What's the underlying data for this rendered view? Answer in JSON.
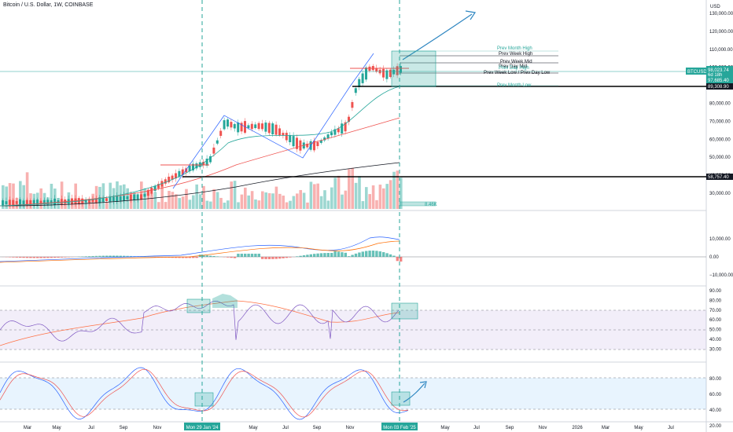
{
  "title": "Bitcoin / U.S. Dollar, 1W, COINBASE",
  "currency": "USD",
  "price_axis": [
    "130,000.00",
    "120,000.00",
    "110,000.00",
    "100,000.00",
    "90,000.00",
    "80,000.00",
    "70,000.00",
    "60,000.00",
    "50,000.00",
    "40,000.00",
    "30,000.00"
  ],
  "price_badges": {
    "ticker": "BTCUSD",
    "last": "98,023.74",
    "countdown": "6d 18h",
    "level2": "97,685.40",
    "level3": "89,308.90",
    "level4": "58,757.40",
    "volume": "8.46K"
  },
  "level_labels": {
    "prev_month_high": "Prev Month High",
    "prev_week_high": "Prev Week High",
    "prev_week_mid": "Prev Week Mid",
    "prev_day_mid": "Prev Day Mid",
    "prev_day_high": "Prev Day High",
    "prev_week_low": "Prev Week Low / Prev Day Low",
    "prev_month_low": "Prev Month Low"
  },
  "macd_axis": [
    "10,000.00",
    "0.00",
    "−10,000.00"
  ],
  "rsi_axis": [
    "90.00",
    "80.00",
    "70.00",
    "60.00",
    "50.00",
    "40.00",
    "30.00"
  ],
  "stoch_axis": [
    "80.00",
    "60.00",
    "40.00",
    "20.00"
  ],
  "time_axis": [
    "Mar",
    "May",
    "Jul",
    "Sep",
    "Nov",
    "Mon 29 Jan '24",
    "May",
    "Jul",
    "Sep",
    "Nov",
    "Mon 03 Feb '25",
    "May",
    "Jul",
    "Sep",
    "Nov",
    "2026",
    "Mar",
    "May",
    "Jul"
  ],
  "colors": {
    "up": "#26a69a",
    "down": "#ef5350",
    "accent": "#2962ff",
    "bg": "#ffffff"
  }
}
